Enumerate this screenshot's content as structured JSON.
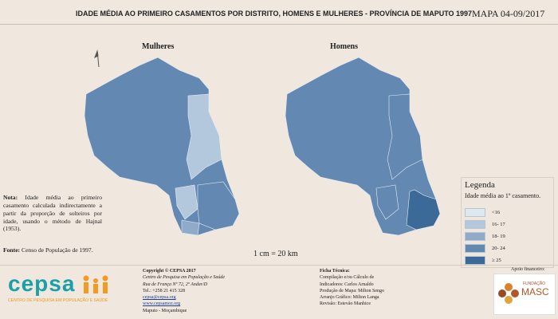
{
  "header": {
    "title": "IDADE MÉDIA AO PRIMEIRO CASAMENTOS  POR DISTRITO, HOMENS E MULHERES - PROVÍNCIA DE MAPUTO 1997",
    "map_id": "MAPA 04-09/2017"
  },
  "maps": [
    {
      "title": "Mulheres"
    },
    {
      "title": "Homens"
    }
  ],
  "scale": "1 cm = 20 km",
  "legend": {
    "title": "Legenda",
    "subtitle": "Idade média ao 1º casamento.",
    "classes": [
      {
        "label": "<16",
        "color": "#dde8ef"
      },
      {
        "label": "16- 17",
        "color": "#b4c8dd"
      },
      {
        "label": "18- 19",
        "color": "#8fabc9"
      },
      {
        "label": "20- 24",
        "color": "#6389b3"
      },
      {
        "label": "≥ 25",
        "color": "#3b6a99"
      }
    ]
  },
  "note": {
    "label": "Nota:",
    "text": "Idade média ao primeiro casamento calculada indirectamente a partir da proporção de solteiros por idade, usando o método de Hajnal (1953)."
  },
  "source": {
    "label": "Fonte:",
    "text": "Censo de População de 1997."
  },
  "footer": {
    "copyright": [
      "Copyright © CEPSA 2017",
      "Centro de Pesquisa em População e Saúde",
      "Rua de França Nº 72, 2º Andar/D",
      "Tel.: +258 21 415 328",
      "cepsa@cepsa.org",
      "www.cepsamoz.org",
      "Maputo - Moçambique"
    ],
    "technical": [
      "Ficha Técnica:",
      "Compilação e/ou Cálculo de",
      "Indicadores: Carlos Arnaldo",
      "Produção de Mapa: Milton Sengo",
      "Arranjo Gráfico: Milton Langa",
      "Revisão: Estevão Manhice"
    ],
    "support": "Apoio financeiro:"
  },
  "logos": {
    "cepsa": "cepsa",
    "cepsa_tagline": "CENTRO DE PESQUISA EM POPULAÇÃO E SAÚDE",
    "masc_top": "FUNDAÇÃO",
    "masc": "MASC"
  }
}
